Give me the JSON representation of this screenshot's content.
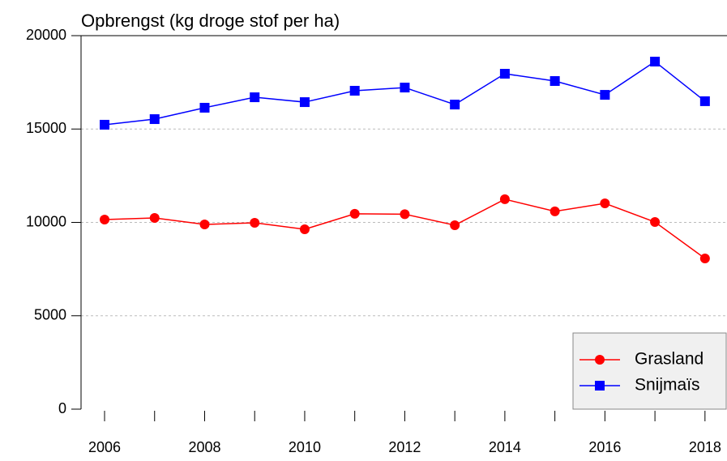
{
  "chart_data": {
    "type": "line",
    "title": "Opbrengst (kg droge stof per ha)",
    "x": [
      2006,
      2007,
      2008,
      2009,
      2010,
      2011,
      2012,
      2013,
      2014,
      2015,
      2016,
      2017,
      2018
    ],
    "series": [
      {
        "name": "Grasland",
        "color": "#ff0000",
        "marker": "circle",
        "values": [
          10150,
          10240,
          9890,
          9980,
          9630,
          10460,
          10440,
          9850,
          11240,
          10590,
          11020,
          10020,
          8070
        ]
      },
      {
        "name": "Snijmaïs",
        "color": "#0000ff",
        "marker": "square",
        "values": [
          15230,
          15530,
          16140,
          16700,
          16440,
          17050,
          17220,
          16310,
          17960,
          17570,
          16830,
          18610,
          16490
        ]
      }
    ],
    "xlim": [
      2005.53,
      2018.44
    ],
    "xticks": [
      2006,
      2008,
      2010,
      2012,
      2014,
      2016,
      2018
    ],
    "xminor_ticks": [
      2007,
      2009,
      2011,
      2013,
      2015,
      2017
    ],
    "ylim": [
      0,
      20000
    ],
    "yticks": [
      0,
      5000,
      10000,
      15000,
      20000
    ],
    "grid": true,
    "legend": "lower right"
  }
}
